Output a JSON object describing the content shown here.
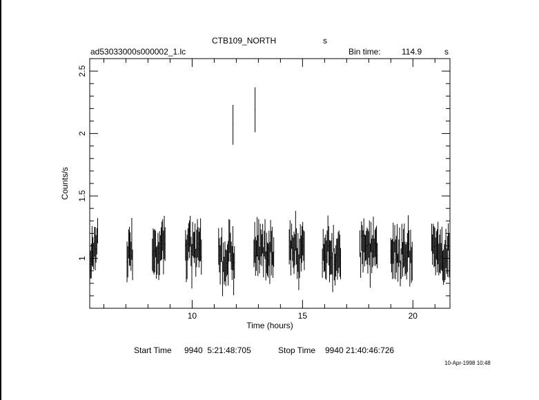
{
  "header": {
    "object": "CTB109_NORTH",
    "object_suffix": "s",
    "filename": "ad53033000s000002_1.lc",
    "bin_label": "Bin time:",
    "bin_value": "114.9",
    "bin_unit": "s"
  },
  "footer": {
    "start_label": "Start Time",
    "start_value": "9940  5:21:48:705",
    "stop_label": "Stop Time",
    "stop_value": "9940 21:40:46:726",
    "stamp": "10-Apr-1998 10:48"
  },
  "chart_data": {
    "type": "scatter",
    "title": "CTB109_NORTH",
    "xlabel": "Time (hours)",
    "ylabel": "Counts/s",
    "xlim": [
      5.36,
      21.68
    ],
    "ylim": [
      0.6,
      2.6
    ],
    "xticks": [
      10,
      15,
      20
    ],
    "yticks": [
      1,
      1.5,
      2,
      2.5
    ],
    "xticklabels": [
      "10",
      "15",
      "20"
    ],
    "yticklabels": [
      "1",
      "1.5",
      "2",
      "2.5"
    ],
    "grid": false,
    "errorbars": true,
    "segments": [
      {
        "start": 5.36,
        "end": 5.72,
        "mean": 1.07
      },
      {
        "start": 7.05,
        "end": 7.32,
        "mean": 1.03
      },
      {
        "start": 8.2,
        "end": 8.8,
        "mean": 1.08
      },
      {
        "start": 9.7,
        "end": 10.45,
        "mean": 1.1
      },
      {
        "start": 11.2,
        "end": 11.95,
        "mean": 1.02
      },
      {
        "start": 12.8,
        "end": 13.7,
        "mean": 1.07
      },
      {
        "start": 14.4,
        "end": 15.1,
        "mean": 1.08
      },
      {
        "start": 15.9,
        "end": 16.75,
        "mean": 1.02
      },
      {
        "start": 17.6,
        "end": 18.4,
        "mean": 1.07
      },
      {
        "start": 19.0,
        "end": 20.0,
        "mean": 1.05
      },
      {
        "start": 20.85,
        "end": 21.68,
        "mean": 1.03
      }
    ],
    "flares": [
      {
        "x": 11.85,
        "y": 2.07,
        "yerr": 0.16
      },
      {
        "x": 12.85,
        "y": 2.19,
        "yerr": 0.18
      }
    ]
  }
}
